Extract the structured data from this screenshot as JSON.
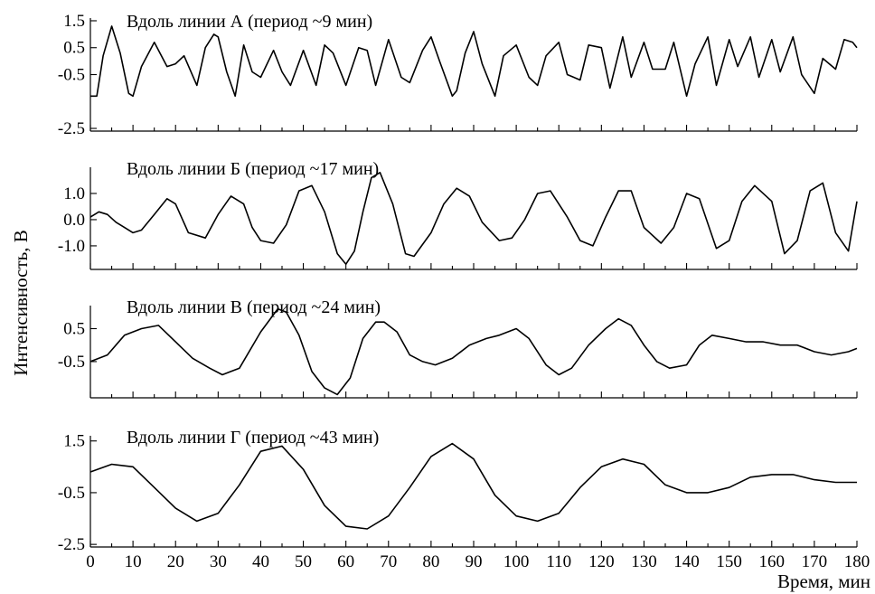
{
  "chart_data": {
    "type": "line",
    "ylabel": "Интенсивность, В",
    "xlabel": "Время, мин",
    "xlim": [
      0,
      180
    ],
    "x_ticks": [
      0,
      10,
      20,
      30,
      40,
      50,
      60,
      70,
      80,
      90,
      100,
      110,
      120,
      130,
      140,
      150,
      160,
      170,
      180
    ],
    "panels": [
      {
        "title": "Вдоль линии А (период ~9 мин)",
        "ylim": [
          -2.6,
          1.6
        ],
        "y_ticks": [
          1.5,
          0.5,
          -0.5,
          -2.5
        ],
        "y_tick_labels": [
          "1.5",
          "0.5",
          "-0.5",
          "-2.5"
        ],
        "series": [
          {
            "x": [
              0,
              1.5,
              3,
              5,
              7,
              9,
              10,
              12,
              15,
              18,
              20,
              22,
              25,
              27,
              29,
              30,
              32,
              34,
              36,
              38,
              40,
              43,
              45,
              47,
              50,
              53,
              55,
              57,
              60,
              63,
              65,
              67,
              70,
              73,
              75,
              78,
              80,
              82,
              85,
              86,
              88,
              90,
              92,
              95,
              97,
              100,
              103,
              105,
              107,
              110,
              112,
              115,
              117,
              120,
              122,
              125,
              127,
              130,
              132,
              135,
              137,
              140,
              142,
              145,
              147,
              150,
              152,
              155,
              157,
              160,
              162,
              165,
              167,
              170,
              172,
              175,
              177,
              179,
              180
            ],
            "y": [
              -1.3,
              -1.3,
              0.2,
              1.3,
              0.3,
              -1.2,
              -1.3,
              -0.2,
              0.7,
              -0.2,
              -0.1,
              0.2,
              -0.9,
              0.5,
              1.0,
              0.9,
              -0.4,
              -1.3,
              0.6,
              -0.4,
              -0.6,
              0.4,
              -0.4,
              -0.9,
              0.4,
              -0.9,
              0.6,
              0.3,
              -0.9,
              0.5,
              0.4,
              -0.9,
              0.8,
              -0.6,
              -0.8,
              0.4,
              0.9,
              0.0,
              -1.3,
              -1.1,
              0.3,
              1.1,
              -0.1,
              -1.3,
              0.2,
              0.6,
              -0.6,
              -0.9,
              0.2,
              0.7,
              -0.5,
              -0.7,
              0.6,
              0.5,
              -1.0,
              0.9,
              -0.6,
              0.7,
              -0.3,
              -0.3,
              0.7,
              -1.3,
              -0.1,
              0.9,
              -0.9,
              0.8,
              -0.2,
              0.9,
              -0.6,
              0.8,
              -0.4,
              0.9,
              -0.5,
              -1.2,
              0.1,
              -0.3,
              0.8,
              0.7,
              0.5
            ]
          }
        ]
      },
      {
        "title": "Вдоль линии Б (период ~17 мин)",
        "ylim": [
          -1.9,
          2.0
        ],
        "y_ticks": [
          1.0,
          0.0,
          -1.0
        ],
        "y_tick_labels": [
          "1.0",
          "0.0",
          "-1.0"
        ],
        "series": [
          {
            "x": [
              0,
              2,
              4,
              6,
              8,
              10,
              12,
              15,
              18,
              20,
              23,
              27,
              30,
              33,
              36,
              38,
              40,
              43,
              46,
              49,
              52,
              55,
              58,
              60,
              62,
              64,
              66,
              68,
              71,
              74,
              76,
              80,
              83,
              86,
              89,
              92,
              96,
              99,
              102,
              105,
              108,
              112,
              115,
              118,
              121,
              124,
              127,
              130,
              134,
              137,
              140,
              143,
              147,
              150,
              153,
              156,
              160,
              163,
              166,
              169,
              172,
              175,
              178,
              180
            ],
            "y": [
              0.1,
              0.3,
              0.2,
              -0.1,
              -0.3,
              -0.5,
              -0.4,
              0.2,
              0.8,
              0.6,
              -0.5,
              -0.7,
              0.2,
              0.9,
              0.6,
              -0.3,
              -0.8,
              -0.9,
              -0.2,
              1.1,
              1.3,
              0.3,
              -1.3,
              -1.7,
              -1.2,
              0.3,
              1.6,
              1.8,
              0.6,
              -1.3,
              -1.4,
              -0.5,
              0.6,
              1.2,
              0.9,
              -0.1,
              -0.8,
              -0.7,
              0.0,
              1.0,
              1.1,
              0.1,
              -0.8,
              -1.0,
              0.1,
              1.1,
              1.1,
              -0.3,
              -0.9,
              -0.3,
              1.0,
              0.8,
              -1.1,
              -0.8,
              0.7,
              1.3,
              0.7,
              -1.3,
              -0.8,
              1.1,
              1.4,
              -0.5,
              -1.2,
              0.7
            ]
          }
        ]
      },
      {
        "title": "Вдоль линии В (период ~24 мин)",
        "ylim": [
          -1.6,
          1.2
        ],
        "y_ticks": [
          0.5,
          -0.5
        ],
        "y_tick_labels": [
          "0.5",
          "-0.5"
        ],
        "series": [
          {
            "x": [
              0,
              4,
              8,
              12,
              16,
              20,
              24,
              28,
              31,
              35,
              40,
              44,
              46,
              49,
              52,
              55,
              58,
              61,
              64,
              67,
              69,
              72,
              75,
              78,
              81,
              85,
              89,
              93,
              96,
              100,
              103,
              107,
              110,
              113,
              117,
              121,
              124,
              127,
              130,
              133,
              136,
              140,
              143,
              146,
              150,
              154,
              158,
              162,
              166,
              170,
              174,
              178,
              180
            ],
            "y": [
              -0.5,
              -0.3,
              0.3,
              0.5,
              0.6,
              0.1,
              -0.4,
              -0.7,
              -0.9,
              -0.7,
              0.4,
              1.1,
              1.0,
              0.3,
              -0.8,
              -1.3,
              -1.5,
              -1.0,
              0.2,
              0.7,
              0.7,
              0.4,
              -0.3,
              -0.5,
              -0.6,
              -0.4,
              0.0,
              0.2,
              0.3,
              0.5,
              0.2,
              -0.6,
              -0.9,
              -0.7,
              0.0,
              0.5,
              0.8,
              0.6,
              0.0,
              -0.5,
              -0.7,
              -0.6,
              0.0,
              0.3,
              0.2,
              0.1,
              0.1,
              0.0,
              0.0,
              -0.2,
              -0.3,
              -0.2,
              -0.1
            ]
          }
        ]
      },
      {
        "title": "Вдоль линии Г (период ~43 мин)",
        "ylim": [
          -2.6,
          1.7
        ],
        "y_ticks": [
          1.5,
          -0.5,
          -2.5
        ],
        "y_tick_labels": [
          "1.5",
          "-0.5",
          "-2.5"
        ],
        "series": [
          {
            "x": [
              0,
              5,
              10,
              15,
              20,
              25,
              30,
              35,
              40,
              45,
              50,
              55,
              60,
              65,
              70,
              75,
              80,
              85,
              90,
              95,
              100,
              105,
              110,
              115,
              120,
              125,
              130,
              135,
              140,
              145,
              150,
              155,
              160,
              165,
              170,
              175,
              180
            ],
            "y": [
              0.3,
              0.6,
              0.5,
              -0.3,
              -1.1,
              -1.6,
              -1.3,
              -0.2,
              1.1,
              1.3,
              0.4,
              -1.0,
              -1.8,
              -1.9,
              -1.4,
              -0.3,
              0.9,
              1.4,
              0.8,
              -0.6,
              -1.4,
              -1.6,
              -1.3,
              -0.3,
              0.5,
              0.8,
              0.6,
              -0.2,
              -0.5,
              -0.5,
              -0.3,
              0.1,
              0.2,
              0.2,
              0.0,
              -0.1,
              -0.1
            ]
          }
        ]
      }
    ]
  }
}
